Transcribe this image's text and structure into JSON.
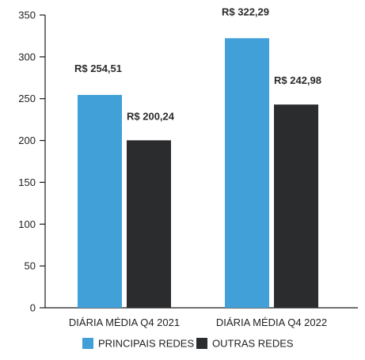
{
  "chart_data": {
    "type": "bar",
    "categories": [
      "DIÁRIA MÉDIA Q4 2021",
      "DIÁRIA MÉDIA Q4 2022"
    ],
    "series": [
      {
        "name": "PRINCIPAIS REDES",
        "values": [
          254.51,
          322.29
        ],
        "labels": [
          "R$ 254,51",
          "R$ 322,29"
        ],
        "color": "#42a0d9"
      },
      {
        "name": "OUTRAS REDES",
        "values": [
          200.24,
          242.98
        ],
        "labels": [
          "R$ 200,24",
          "R$ 242,98"
        ],
        "color": "#2b2c2e"
      }
    ],
    "yticks": [
      "0",
      "50",
      "100",
      "150",
      "200",
      "250",
      "300",
      "350"
    ],
    "ylim": [
      0,
      350
    ],
    "grid": false,
    "legend_position": "bottom"
  }
}
